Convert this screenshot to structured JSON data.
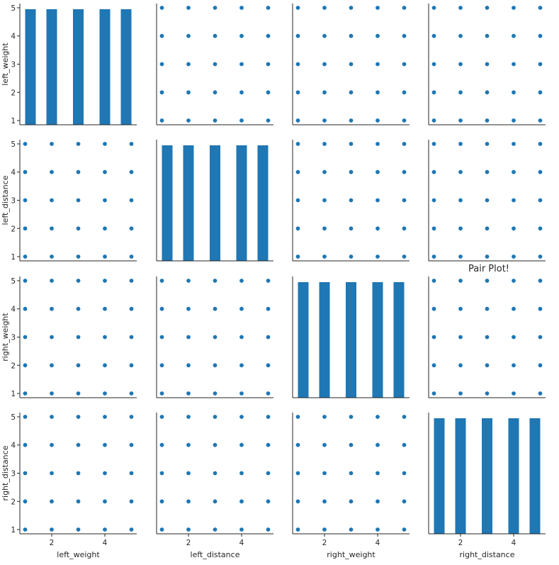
{
  "chart_data": {
    "type": "scatter",
    "title": "Pair Plot!",
    "variables": [
      "left_weight",
      "left_distance",
      "right_weight",
      "right_distance"
    ],
    "ylim": [
      0.85,
      5.15
    ],
    "y_ticks": [
      1,
      2,
      3,
      4,
      5
    ],
    "x_ticks": [
      2,
      4
    ],
    "xlim": [
      0.8,
      5.2
    ],
    "marker_color": "#1f77b4",
    "scatter_points": {
      "x": [
        1,
        2,
        3,
        4,
        5,
        1,
        2,
        3,
        4,
        5,
        1,
        2,
        3,
        4,
        5,
        1,
        2,
        3,
        4,
        5,
        1,
        2,
        3,
        4,
        5
      ],
      "y": [
        1,
        1,
        1,
        1,
        1,
        2,
        2,
        2,
        2,
        2,
        3,
        3,
        3,
        3,
        3,
        4,
        4,
        4,
        4,
        4,
        5,
        5,
        5,
        5,
        5
      ]
    },
    "histogram": {
      "bins": [
        {
          "start": 1.0,
          "end": 1.4,
          "count": 5
        },
        {
          "start": 1.8,
          "end": 2.2,
          "count": 5
        },
        {
          "start": 2.8,
          "end": 3.2,
          "count": 5
        },
        {
          "start": 3.8,
          "end": 4.2,
          "count": 5
        },
        {
          "start": 4.6,
          "end": 5.0,
          "count": 5
        }
      ]
    },
    "grid": false,
    "legend": "none"
  }
}
